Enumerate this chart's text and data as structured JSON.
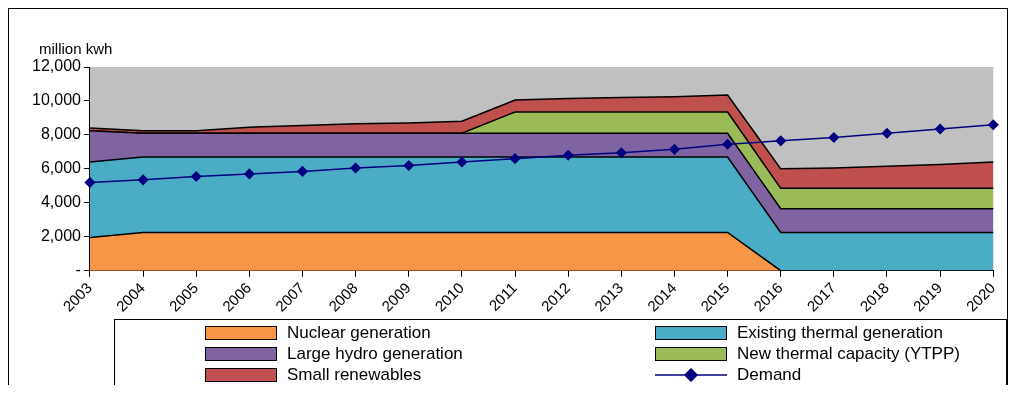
{
  "chart_data": {
    "type": "area",
    "stacked": true,
    "ylabel": "million kwh",
    "categories": [
      "2003",
      "2004",
      "2005",
      "2006",
      "2007",
      "2008",
      "2009",
      "2010",
      "2011",
      "2012",
      "2013",
      "2014",
      "2015",
      "2016",
      "2017",
      "2018",
      "2019",
      "2020"
    ],
    "series": [
      {
        "name": "Nuclear generation",
        "color": "#f79646",
        "values": [
          1950,
          2250,
          2250,
          2250,
          2250,
          2250,
          2250,
          2250,
          2250,
          2250,
          2250,
          2250,
          2250,
          0,
          0,
          0,
          0,
          0
        ]
      },
      {
        "name": "Existing thermal generation",
        "color": "#4bacc6",
        "values": [
          4450,
          4450,
          4450,
          4450,
          4450,
          4450,
          4450,
          4450,
          4450,
          4450,
          4450,
          4450,
          4450,
          2250,
          2250,
          2250,
          2250,
          2250
        ]
      },
      {
        "name": "Large hydro generation",
        "color": "#8064a2",
        "values": [
          1850,
          1400,
          1400,
          1400,
          1400,
          1400,
          1400,
          1400,
          1400,
          1400,
          1400,
          1400,
          1400,
          1400,
          1400,
          1400,
          1400,
          1400
        ]
      },
      {
        "name": "New thermal capacity (YTPP)",
        "color": "#9bbb59",
        "values": [
          0,
          0,
          0,
          0,
          0,
          0,
          0,
          0,
          1250,
          1250,
          1250,
          1250,
          1250,
          1200,
          1200,
          1200,
          1200,
          1200
        ]
      },
      {
        "name": "Small renewables",
        "color": "#c0504d",
        "values": [
          150,
          150,
          150,
          350,
          450,
          550,
          600,
          700,
          700,
          800,
          850,
          900,
          1000,
          1150,
          1200,
          1300,
          1400,
          1550
        ]
      },
      {
        "name": "Demand",
        "type": "line",
        "color": "#000080",
        "marker": "diamond",
        "values": [
          5200,
          5350,
          5550,
          5700,
          5850,
          6050,
          6200,
          6400,
          6600,
          6800,
          6950,
          7150,
          7450,
          7650,
          7850,
          8100,
          8350,
          8600
        ]
      }
    ],
    "ylim": [
      0,
      12000
    ],
    "yticks": [
      {
        "value": 0,
        "label": "-"
      },
      {
        "value": 2000,
        "label": "2,000"
      },
      {
        "value": 4000,
        "label": "4,000"
      },
      {
        "value": 6000,
        "label": "6,000"
      },
      {
        "value": 8000,
        "label": "8,000"
      },
      {
        "value": 10000,
        "label": "10,000"
      },
      {
        "value": 12000,
        "label": "12,000"
      }
    ],
    "grid": false,
    "legend": "bottom"
  }
}
